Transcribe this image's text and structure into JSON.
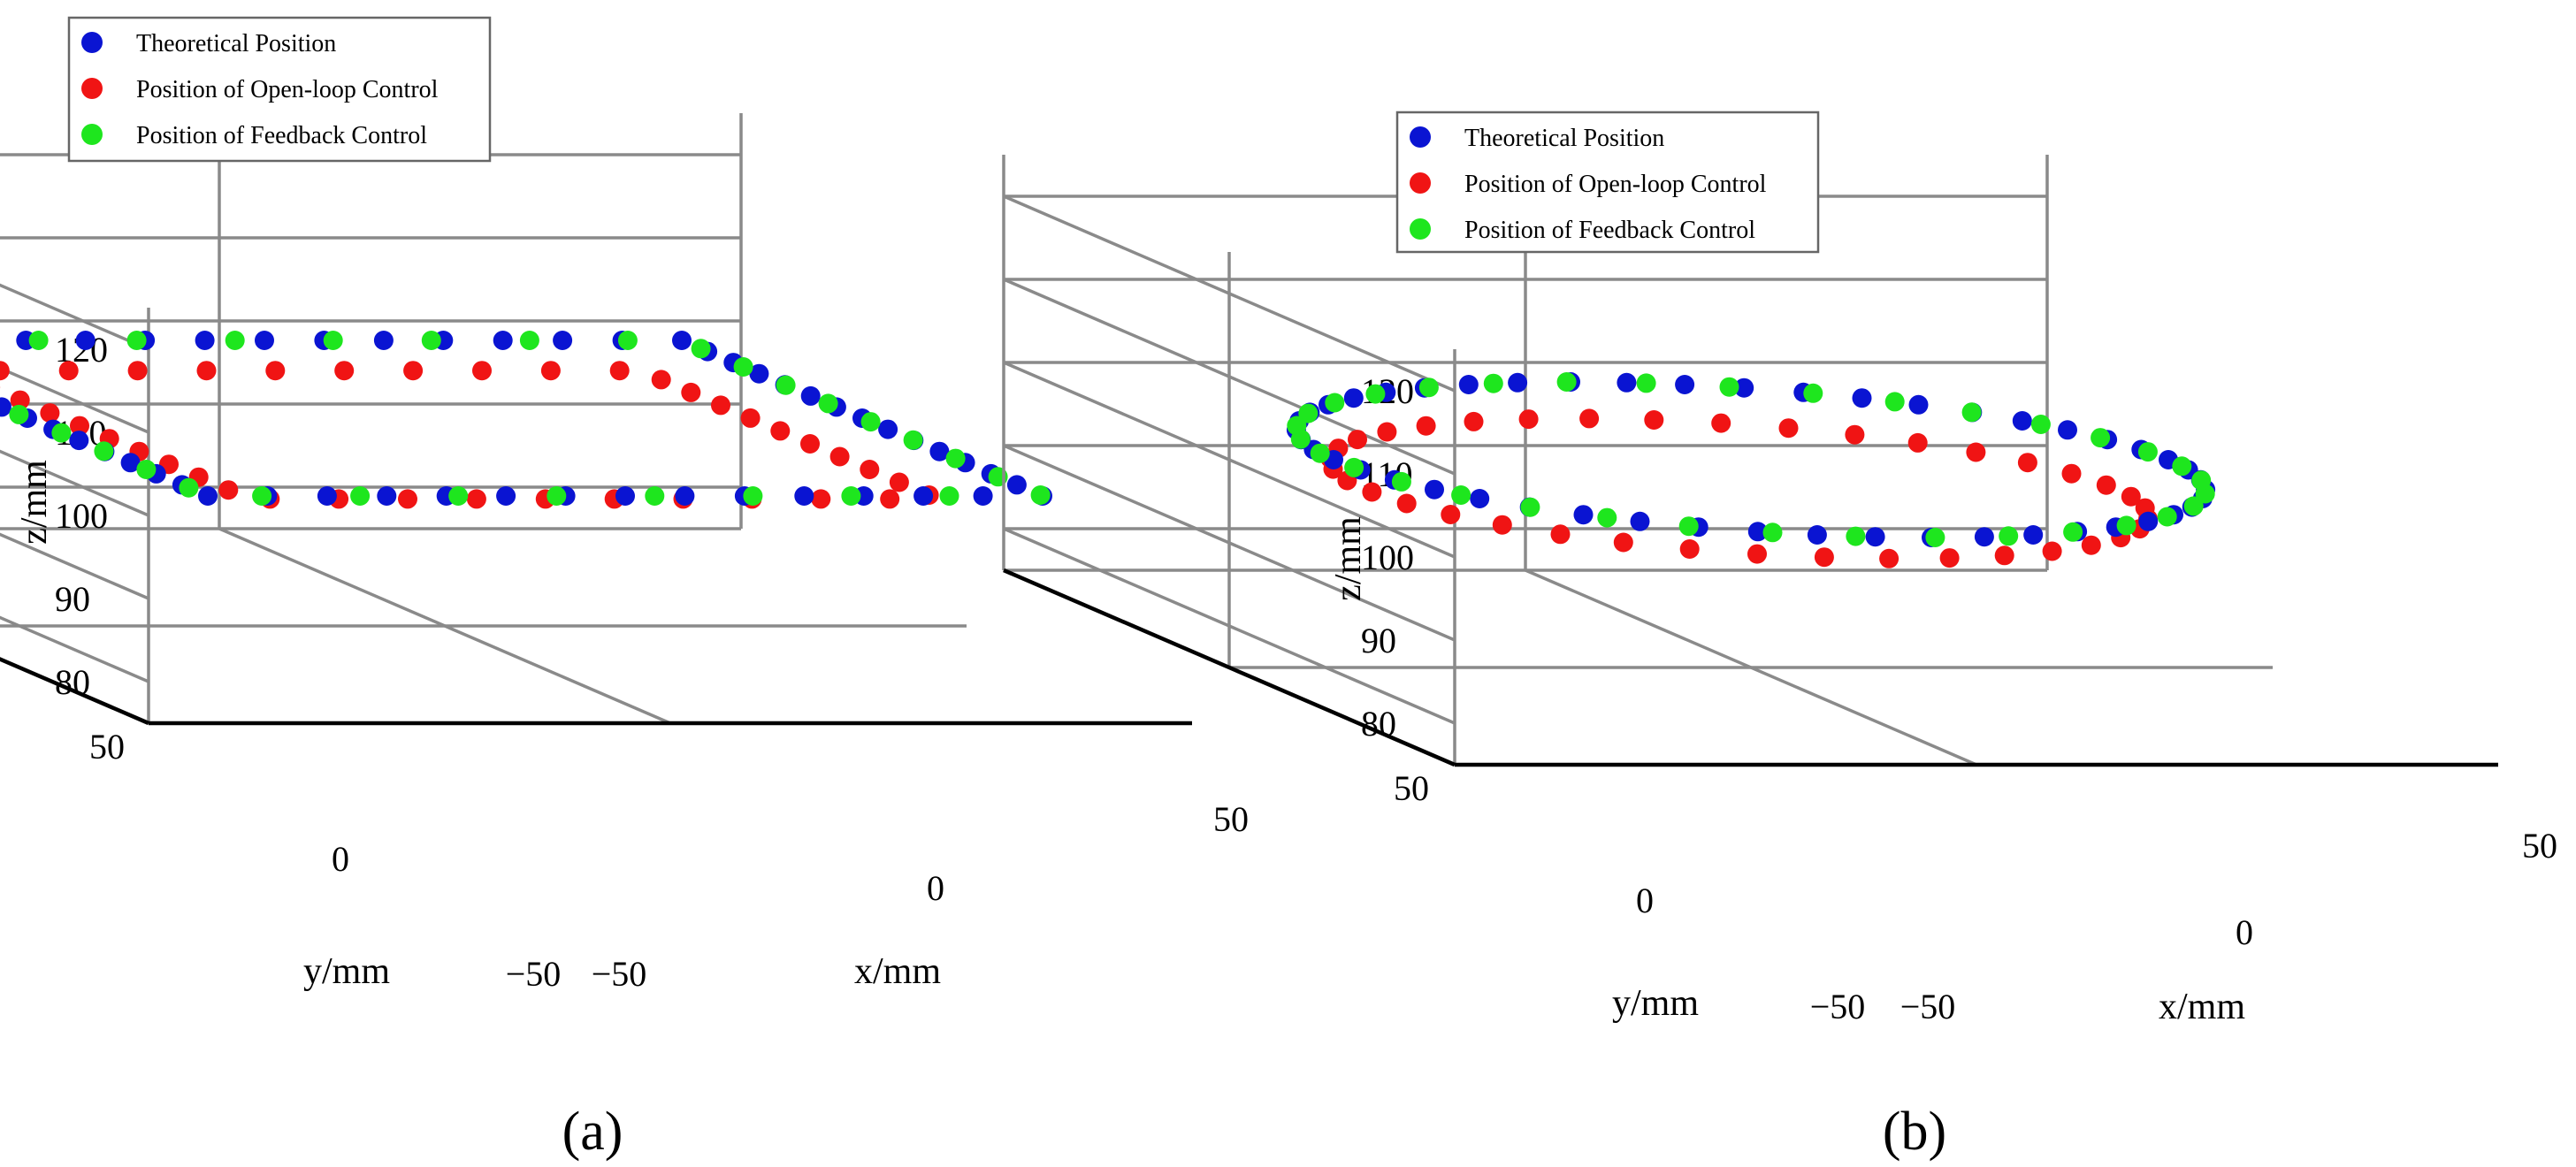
{
  "chart_data": [
    {
      "type": "scatter",
      "panel_label": "(a)",
      "shape": "square",
      "xlabel": "x/mm",
      "ylabel": "y/mm",
      "zlabel": "z/mm",
      "xlim": [
        -50,
        50
      ],
      "ylim": [
        -50,
        50
      ],
      "zlim": [
        75,
        125
      ],
      "x_ticks": [
        "−50",
        "0",
        "50"
      ],
      "y_ticks": [
        "−50",
        "0",
        "50"
      ],
      "z_ticks": [
        "80",
        "90",
        "100",
        "110",
        "120"
      ],
      "grid": true,
      "legend": {
        "location": "top-left",
        "entries": [
          "Theoretical Position",
          "Position of Open-loop Control",
          "Position of Feedback Control"
        ]
      },
      "series": [
        {
          "name": "Theoretical Position",
          "color": "#0a14d2",
          "center": [
            0,
            0
          ],
          "half_size": 40,
          "z": 100,
          "count": 56
        },
        {
          "name": "Position of Open-loop Control",
          "color": "#f01414",
          "center": [
            0,
            0
          ],
          "half_size": 33,
          "z": 98,
          "count": 40
        },
        {
          "name": "Position of Feedback Control",
          "color": "#1ee61e",
          "center": [
            0,
            0
          ],
          "half_size": 40,
          "z": 100,
          "count": 34
        }
      ]
    },
    {
      "type": "scatter",
      "panel_label": "(b)",
      "shape": "circle",
      "xlabel": "x/mm",
      "ylabel": "y/mm",
      "zlabel": "z/mm",
      "xlim": [
        -50,
        50
      ],
      "ylim": [
        -50,
        50
      ],
      "zlim": [
        75,
        125
      ],
      "x_ticks": [
        "−50",
        "0",
        "50"
      ],
      "y_ticks": [
        "−50",
        "0",
        "50"
      ],
      "z_ticks": [
        "80",
        "90",
        "100",
        "110",
        "120"
      ],
      "grid": true,
      "legend": {
        "location": "top-left",
        "entries": [
          "Theoretical Position",
          "Position of Open-loop Control",
          "Position of Feedback Control"
        ]
      },
      "series": [
        {
          "name": "Theoretical Position",
          "color": "#0a14d2",
          "center": [
            0,
            0
          ],
          "radius": 40,
          "z": 100,
          "count": 48
        },
        {
          "name": "Position of Open-loop Control",
          "color": "#f01414",
          "center": [
            -2,
            -2
          ],
          "radius": 36,
          "z": 97,
          "count": 38
        },
        {
          "name": "Position of Feedback Control",
          "color": "#1ee61e",
          "center": [
            0,
            0
          ],
          "radius": 40,
          "z": 100,
          "count": 34
        }
      ]
    }
  ]
}
